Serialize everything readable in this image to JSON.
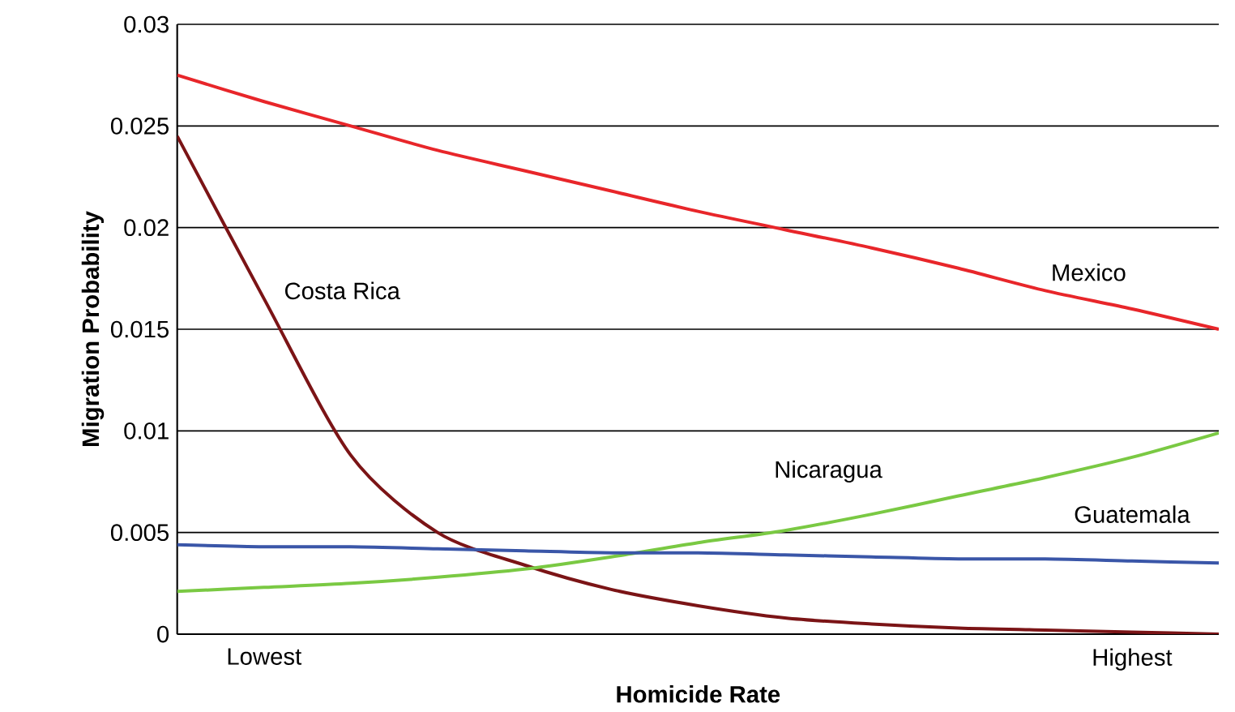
{
  "chart_data": {
    "type": "line",
    "xlabel": "Homicide Rate",
    "ylabel": "Migration Probability",
    "categories": [
      null,
      "Lowest",
      null,
      null,
      null,
      null,
      null,
      null,
      null,
      null,
      null,
      "Highest",
      null
    ],
    "ylim": [
      0,
      0.03
    ],
    "yticks": [
      0,
      0.005,
      0.01,
      0.015,
      0.02,
      0.025,
      0.03
    ],
    "grid": "y",
    "legend": false,
    "marker": "none",
    "line_style": "solid",
    "series": [
      {
        "name": "Mexico",
        "color": "#e8262a",
        "values": [
          0.0275,
          0.0262,
          0.025,
          0.0238,
          0.0228,
          0.0218,
          0.0208,
          0.0199,
          0.019,
          0.018,
          0.0169,
          0.016,
          0.015
        ]
      },
      {
        "name": "Costa Rica",
        "color": "#7b1416",
        "values": [
          0.0245,
          0.0165,
          0.0088,
          0.005,
          0.0034,
          0.0022,
          0.0014,
          0.0008,
          0.0005,
          0.0003,
          0.0002,
          0.0001,
          0
        ]
      },
      {
        "name": "Nicaragua",
        "color": "#7ac943",
        "values": [
          0.0021,
          0.0023,
          0.0025,
          0.0028,
          0.0032,
          0.0038,
          0.0045,
          0.0051,
          0.0059,
          0.0068,
          0.0077,
          0.0087,
          0.0099
        ]
      },
      {
        "name": "Guatemala",
        "color": "#3a56a8",
        "values": [
          0.0044,
          0.0043,
          0.0043,
          0.0042,
          0.0041,
          0.004,
          0.004,
          0.0039,
          0.0038,
          0.0037,
          0.0037,
          0.0036,
          0.0035
        ]
      }
    ]
  }
}
